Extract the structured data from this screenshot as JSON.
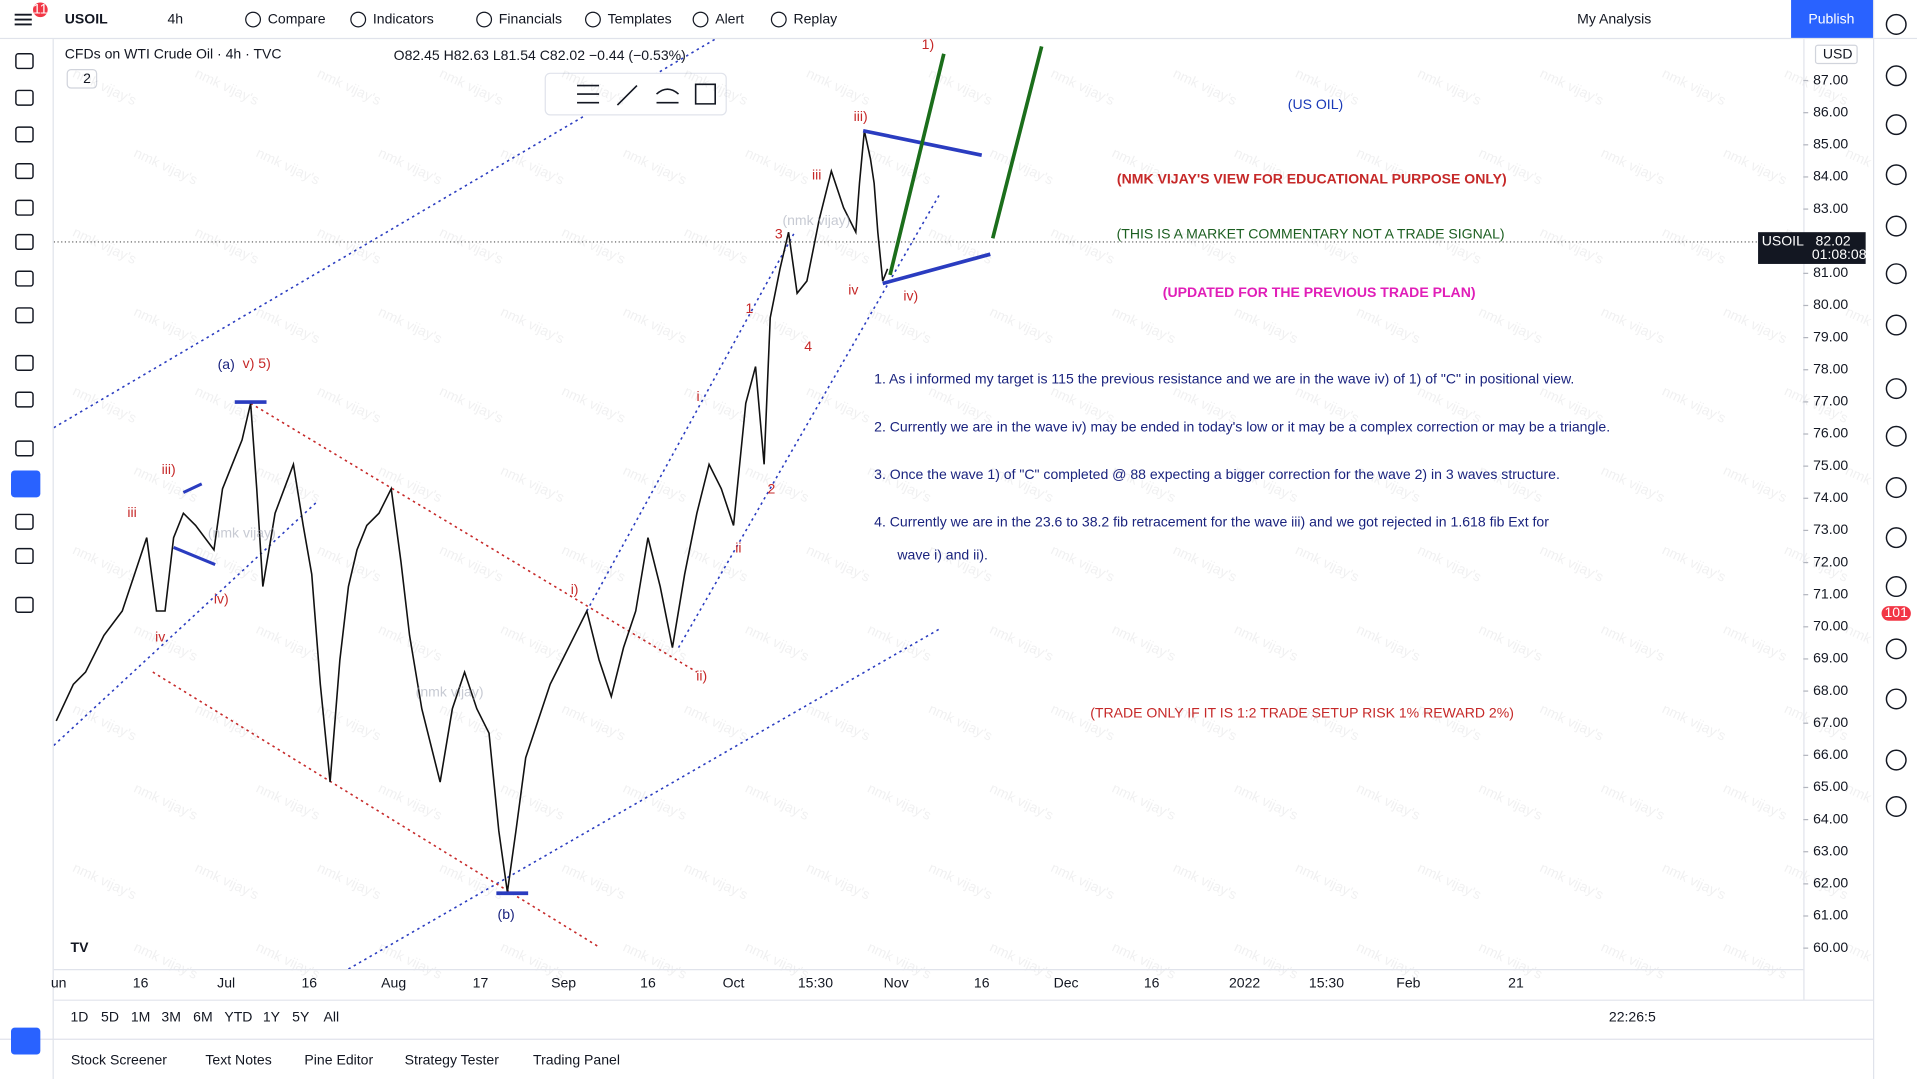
{
  "toolbar": {
    "badge": "11",
    "symbol": "USOIL",
    "interval": "4h",
    "buttons": [
      "Compare",
      "Indicators",
      "Financials",
      "Templates",
      "Alert",
      "Replay"
    ],
    "layout": "My Analysis",
    "publish": "Publish"
  },
  "legend": {
    "title": "CFDs on WTI Crude Oil · 4h · TVC",
    "ohlc": "O82.45 H82.63 L81.54 C82.02 −0.44 (−0.53%)",
    "count": "2"
  },
  "price_axis": {
    "currency": "USD",
    "ylim": [
      59.35,
      88.29
    ],
    "ticks": [
      {
        "value": 87,
        "label": "87.00"
      },
      {
        "value": 86,
        "label": "86.00"
      },
      {
        "value": 85,
        "label": "85.00"
      },
      {
        "value": 84,
        "label": "84.00"
      },
      {
        "value": 83,
        "label": "83.00"
      },
      {
        "value": 81,
        "label": "81.00"
      },
      {
        "value": 80,
        "label": "80.00"
      },
      {
        "value": 79,
        "label": "79.00"
      },
      {
        "value": 78,
        "label": "78.00"
      },
      {
        "value": 77,
        "label": "77.00"
      },
      {
        "value": 76,
        "label": "76.00"
      },
      {
        "value": 75,
        "label": "75.00"
      },
      {
        "value": 74,
        "label": "74.00"
      },
      {
        "value": 73,
        "label": "73.00"
      },
      {
        "value": 72,
        "label": "72.00"
      },
      {
        "value": 71,
        "label": "71.00"
      },
      {
        "value": 70,
        "label": "70.00"
      },
      {
        "value": 69,
        "label": "69.00"
      },
      {
        "value": 68,
        "label": "68.00"
      },
      {
        "value": 67,
        "label": "67.00"
      },
      {
        "value": 66,
        "label": "66.00"
      },
      {
        "value": 65,
        "label": "65.00"
      },
      {
        "value": 64,
        "label": "64.00"
      },
      {
        "value": 63,
        "label": "63.00"
      },
      {
        "value": 62,
        "label": "62.00"
      },
      {
        "value": 61,
        "label": "61.00"
      },
      {
        "value": 60,
        "label": "60.00"
      }
    ],
    "current": {
      "symbol": "USOIL",
      "price": "82.02",
      "countdown": "01:08:08"
    }
  },
  "time_axis": [
    "un",
    "16",
    "Jul",
    "16",
    "Aug",
    "17",
    "Sep",
    "16",
    "Oct",
    "15:30",
    "Nov",
    "16",
    "Dec",
    "16",
    "2022",
    "15:30",
    "Feb",
    "21"
  ],
  "annotations": {
    "title": "(US OIL)",
    "disclaimer": "(NMK VIJAY'S VIEW FOR EDUCATIONAL PURPOSE ONLY)",
    "commentary": "(THIS IS A MARKET COMMENTARY NOT A TRADE SIGNAL)",
    "update": "(UPDATED FOR THE PREVIOUS TRADE PLAN)",
    "points": [
      "1. As i informed my target is 115 the previous resistance and we are in the wave iv) of 1) of  \"C\" in positional view.",
      "2. Currently we are in the wave iv) may be ended in today's low or it may be a complex correction or may be a triangle.",
      "3. Once the wave 1) of \"C\" completed @ 88 expecting a bigger correction for the wave 2) in 3 waves structure.",
      "4.  Currently we are in the 23.6 to 38.2 fib retracement for the wave iii) and we got rejected in 1.618 fib Ext for",
      "wave i) and ii)."
    ],
    "rule": "(TRADE ONLY IF IT IS 1:2 TRADE SETUP RISK 1% REWARD 2%)",
    "waves": [
      "1)",
      "iii)",
      "iii",
      "3",
      "1",
      "4",
      "i",
      "2",
      "ii",
      "iv",
      "iv)",
      "(a)",
      "v) 5)",
      "iii)",
      "iii",
      "iv)",
      "iv",
      "i)",
      "ii)",
      "(b)"
    ],
    "watermark": "nmk vijay's",
    "watermark_big": "(nmk vijay)"
  },
  "bottom": {
    "ranges": [
      "1D",
      "5D",
      "1M",
      "3M",
      "6M",
      "YTD",
      "1Y",
      "5Y",
      "All"
    ],
    "clock": "22:26:5",
    "tabs": [
      "Stock Screener",
      "Text Notes",
      "Pine Editor",
      "Strategy Tester",
      "Trading Panel"
    ],
    "notifications": "101"
  }
}
